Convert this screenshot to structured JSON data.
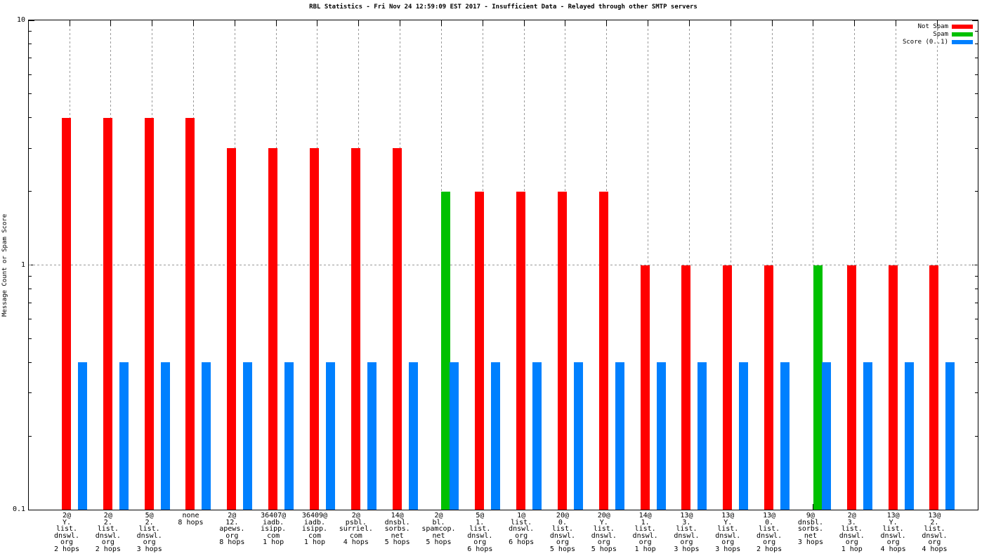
{
  "title": "RBL Statistics - Fri Nov 24 12:59:09 EST 2017 - Insufficient Data - Relayed through other SMTP servers",
  "chart_data": {
    "type": "bar",
    "title": "RBL Statistics - Fri Nov 24 12:59:09 EST 2017 - Insufficient Data - Relayed through other SMTP servers",
    "xlabel": "",
    "ylabel": "Message Count or Spam Score",
    "yscale": "log",
    "ylim": [
      0.1,
      10
    ],
    "ytick_values": [
      10,
      1,
      0.1
    ],
    "ytick_labels": [
      "10",
      "1",
      "0.1"
    ],
    "grid": "dotted gridline at y=1 and vertical dotted lines at each x tick (above y=1)",
    "legend_position": "top-right-inside",
    "colors": {
      "not_spam": "#ff0000",
      "spam": "#00c000",
      "score": "#0080ff",
      "grid": "#9a9a9a",
      "axis": "#000000",
      "background": "#ffffff"
    },
    "legend": [
      {
        "name": "Not Spam",
        "series_key": "not_spam",
        "color": "#ff0000"
      },
      {
        "name": "Spam",
        "series_key": "spam",
        "color": "#00c000"
      },
      {
        "name": "Score (0..1)",
        "series_key": "score",
        "color": "#0080ff"
      }
    ],
    "score_series_name": "Score (0..1)",
    "groups": [
      {
        "label_lines": [
          "2@",
          "Y.",
          "list.",
          "dnswl.",
          "org",
          "2 hops"
        ],
        "label": "2@ Y. list. dnswl. org 2 hops",
        "series": "not_spam",
        "count": 4,
        "score": 0.4
      },
      {
        "label_lines": [
          "2@",
          "2.",
          "list.",
          "dnswl.",
          "org",
          "2 hops"
        ],
        "label": "2@ 2. list. dnswl. org 2 hops",
        "series": "not_spam",
        "count": 4,
        "score": 0.4
      },
      {
        "label_lines": [
          "5@",
          "2.",
          "list.",
          "dnswl.",
          "org",
          "3 hops"
        ],
        "label": "5@ 2. list. dnswl. org 3 hops",
        "series": "not_spam",
        "count": 4,
        "score": 0.4
      },
      {
        "label_lines": [
          "none",
          "8 hops"
        ],
        "label": "none 8 hops",
        "series": "not_spam",
        "count": 4,
        "score": 0.4
      },
      {
        "label_lines": [
          "2@",
          "12.",
          "apews.",
          "org",
          "8 hops"
        ],
        "label": "2@ 12. apews. org 8 hops",
        "series": "not_spam",
        "count": 3,
        "score": 0.4
      },
      {
        "label_lines": [
          "36407@",
          "iadb.",
          "isipp.",
          "com",
          "1 hop"
        ],
        "label": "36407@ iadb. isipp. com 1 hop",
        "series": "not_spam",
        "count": 3,
        "score": 0.4
      },
      {
        "label_lines": [
          "36409@",
          "iadb.",
          "isipp.",
          "com",
          "1 hop"
        ],
        "label": "36409@ iadb. isipp. com 1 hop",
        "series": "not_spam",
        "count": 3,
        "score": 0.4
      },
      {
        "label_lines": [
          "2@",
          "psbl.",
          "surriel.",
          "com",
          "4 hops"
        ],
        "label": "2@ psbl. surriel. com 4 hops",
        "series": "not_spam",
        "count": 3,
        "score": 0.4
      },
      {
        "label_lines": [
          "14@",
          "dnsbl.",
          "sorbs.",
          "net",
          "5 hops"
        ],
        "label": "14@ dnsbl. sorbs. net 5 hops",
        "series": "not_spam",
        "count": 3,
        "score": 0.4
      },
      {
        "label_lines": [
          "2@",
          "bl.",
          "spamcop.",
          "net",
          "5 hops"
        ],
        "label": "2@ bl. spamcop. net 5 hops",
        "series": "spam",
        "count": 2,
        "score": 0.4
      },
      {
        "label_lines": [
          "5@",
          "1.",
          "list.",
          "dnswl.",
          "org",
          "6 hops"
        ],
        "label": "5@ 1. list. dnswl. org 6 hops",
        "series": "not_spam",
        "count": 2,
        "score": 0.4
      },
      {
        "label_lines": [
          "1@",
          "list.",
          "dnswl.",
          "org",
          "6 hops"
        ],
        "label": "1@ list. dnswl. org 6 hops",
        "series": "not_spam",
        "count": 2,
        "score": 0.4
      },
      {
        "label_lines": [
          "20@",
          "0.",
          "list.",
          "dnswl.",
          "org",
          "5 hops"
        ],
        "label": "20@ 0. list. dnswl. org 5 hops",
        "series": "not_spam",
        "count": 2,
        "score": 0.4
      },
      {
        "label_lines": [
          "20@",
          "Y.",
          "list.",
          "dnswl.",
          "org",
          "5 hops"
        ],
        "label": "20@ Y. list. dnswl. org 5 hops",
        "series": "not_spam",
        "count": 2,
        "score": 0.4
      },
      {
        "label_lines": [
          "14@",
          "1.",
          "list.",
          "dnswl.",
          "org",
          "1 hop"
        ],
        "label": "14@ 1. list. dnswl. org 1 hop",
        "series": "not_spam",
        "count": 1,
        "score": 0.4
      },
      {
        "label_lines": [
          "13@",
          "3.",
          "list.",
          "dnswl.",
          "org",
          "3 hops"
        ],
        "label": "13@ 3. list. dnswl. org 3 hops",
        "series": "not_spam",
        "count": 1,
        "score": 0.4
      },
      {
        "label_lines": [
          "13@",
          "Y.",
          "list.",
          "dnswl.",
          "org",
          "3 hops"
        ],
        "label": "13@ Y. list. dnswl. org 3 hops",
        "series": "not_spam",
        "count": 1,
        "score": 0.4
      },
      {
        "label_lines": [
          "13@",
          "0.",
          "list.",
          "dnswl.",
          "org",
          "2 hops"
        ],
        "label": "13@ 0. list. dnswl. org 2 hops",
        "series": "not_spam",
        "count": 1,
        "score": 0.4
      },
      {
        "label_lines": [
          "9@",
          "dnsbl.",
          "sorbs.",
          "net",
          "3 hops"
        ],
        "label": "9@ dnsbl. sorbs. net 3 hops",
        "series": "spam",
        "count": 1,
        "score": 0.4
      },
      {
        "label_lines": [
          "2@",
          "3.",
          "list.",
          "dnswl.",
          "org",
          "1 hop"
        ],
        "label": "2@ 3. list. dnswl. org 1 hop",
        "series": "not_spam",
        "count": 1,
        "score": 0.4
      },
      {
        "label_lines": [
          "13@",
          "Y.",
          "list.",
          "dnswl.",
          "org",
          "4 hops"
        ],
        "label": "13@ Y. list. dnswl. org 4 hops",
        "series": "not_spam",
        "count": 1,
        "score": 0.4
      },
      {
        "label_lines": [
          "13@",
          "2.",
          "list.",
          "dnswl.",
          "org",
          "4 hops"
        ],
        "label": "13@ 2. list. dnswl. org 4 hops",
        "series": "not_spam",
        "count": 1,
        "score": 0.4
      }
    ]
  }
}
